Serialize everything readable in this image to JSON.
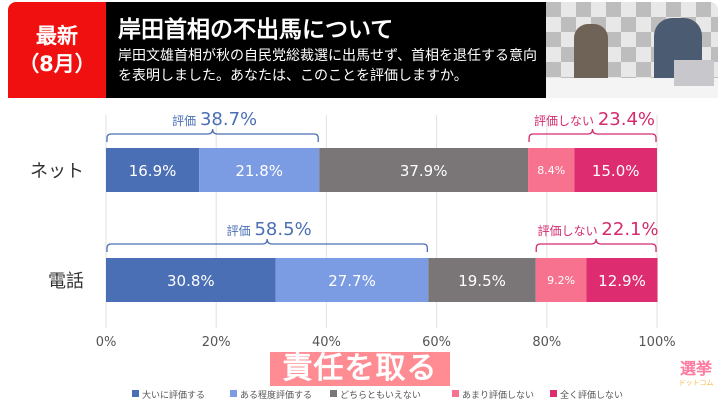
{
  "header": {
    "badge_line1": "最新",
    "badge_line2": "（8月）",
    "title": "岸田首相の不出馬について",
    "subtitle": "岸田文雄首相が秋の自民党総裁選に出馬せず、首相を退任する意向を表明しました。あなたは、このことを評価しますか。"
  },
  "overlay_caption": "責任を取る",
  "logo": {
    "main": "選挙",
    "sub": "ドットコム"
  },
  "chart_data": {
    "type": "bar",
    "orientation": "horizontal-stacked",
    "categories": [
      "ネット",
      "電話"
    ],
    "series": [
      {
        "name": "大いに評価する",
        "color": "#4a6fb5",
        "values": [
          16.9,
          30.8
        ]
      },
      {
        "name": "ある程度評価する",
        "color": "#7b9be2",
        "values": [
          21.8,
          27.7
        ]
      },
      {
        "name": "どちらともいえない",
        "color": "#7a7677",
        "values": [
          37.9,
          19.5
        ]
      },
      {
        "name": "あまり評価しない",
        "color": "#f7728f",
        "values": [
          8.4,
          9.2
        ]
      },
      {
        "name": "全く評価しない",
        "color": "#dd2c70",
        "values": [
          15.0,
          12.9
        ]
      }
    ],
    "value_labels": [
      [
        "16.9%",
        "21.8%",
        "37.9%",
        "8.4%",
        "15.0%"
      ],
      [
        "30.8%",
        "27.7%",
        "19.5%",
        "9.2%",
        "12.9%"
      ]
    ],
    "annotations": [
      {
        "label": "評価",
        "value": "38.7%",
        "color": "#4a6fb5",
        "range": [
          0,
          38.7
        ],
        "row": 0
      },
      {
        "label": "評価しない",
        "value": "23.4%",
        "color": "#d52a6e",
        "range": [
          76.6,
          100
        ],
        "row": 0
      },
      {
        "label": "評価",
        "value": "58.5%",
        "color": "#4a6fb5",
        "range": [
          0,
          58.5
        ],
        "row": 1
      },
      {
        "label": "評価しない",
        "value": "22.1%",
        "color": "#d52a6e",
        "range": [
          77.9,
          100
        ],
        "row": 1
      }
    ],
    "x_ticks": [
      "0%",
      "20%",
      "40%",
      "60%",
      "80%",
      "100%"
    ],
    "xlim": [
      0,
      100
    ],
    "grid": true,
    "legend": "bottom"
  }
}
